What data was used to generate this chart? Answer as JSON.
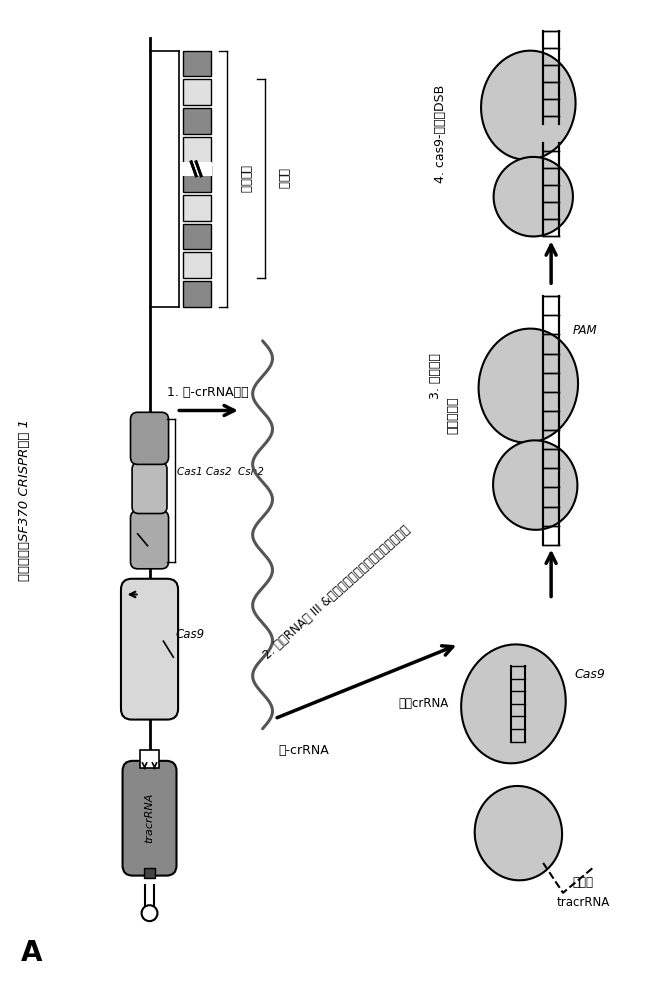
{
  "title": "化脓链球菌SF370 CRISPR座位 1",
  "label_A": "A",
  "label_direct_repeat": "同向重复",
  "label_spacer": "间隔子",
  "label_tracr": "tracrRNA",
  "label_cas9_gene": "Cas9",
  "label_cas1cas2csn2": "Cas1 Cas2  Csn2",
  "label_step1": "1. 前-crRNA转录",
  "label_pre_crRNA": "前-crRNA",
  "label_step2": "2. 通过RNA酶 III &一种或多种未知核酸酶进行的成熟",
  "label_mature_crRNA": "成熟crRNA",
  "label_processed_tracr_1": "加工的",
  "label_processed_tracr_2": "tracrRNA",
  "label_step3_a": "3. 靶标识别",
  "label_step3_b": "原型间隔子",
  "label_PAM": "PAM",
  "label_cas9": "Cas9",
  "label_step4": "4. cas9-介导的DSB",
  "bg_color": "#ffffff"
}
